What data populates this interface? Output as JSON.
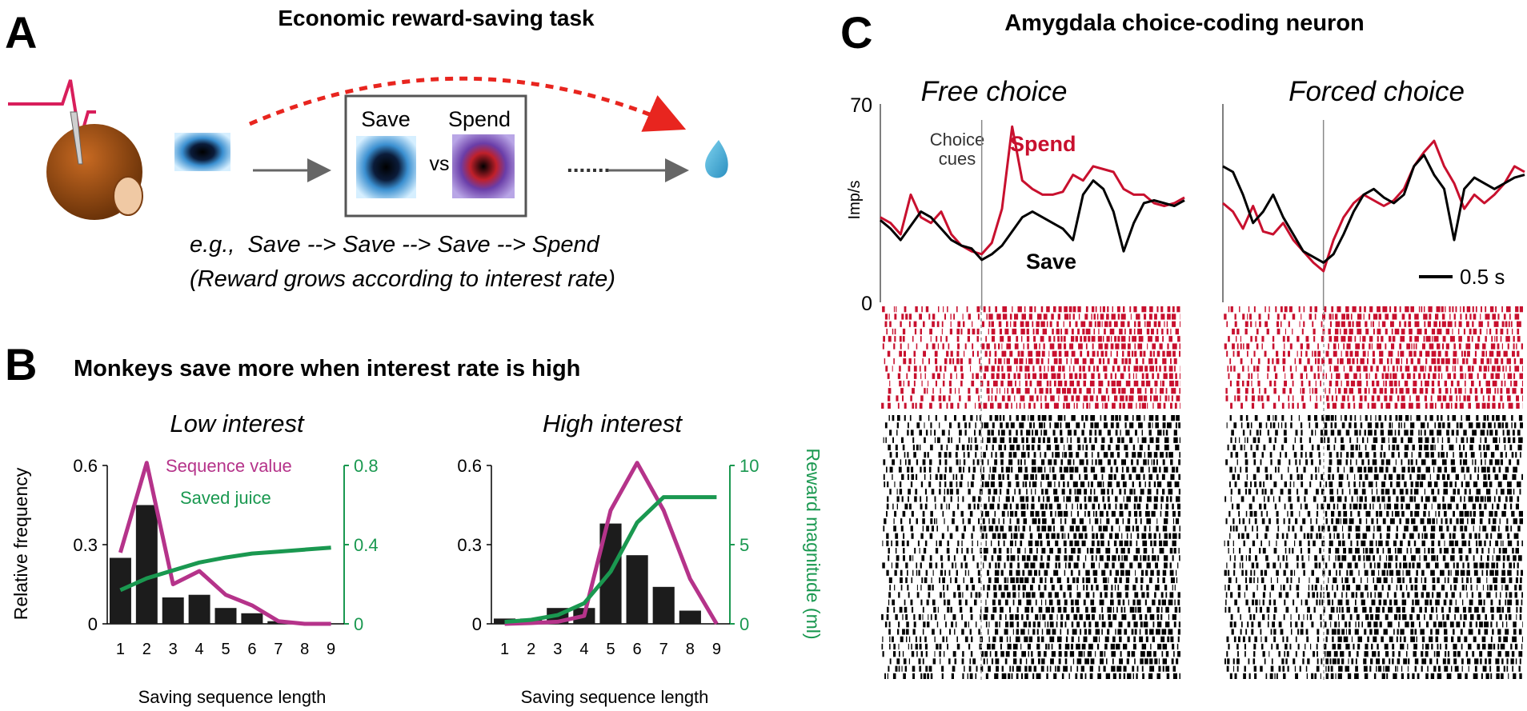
{
  "panel_a": {
    "letter": "A",
    "title": "Economic reward-saving task",
    "save_label": "Save",
    "spend_label": "Spend",
    "vs_label": "vs",
    "example": "e.g.,  Save --> Save --> Save --> Spend",
    "note": "(Reward grows according to interest rate)"
  },
  "panel_b": {
    "letter": "B",
    "title": "Monkeys save more when interest rate is high",
    "low_title": "Low interest",
    "high_title": "High interest",
    "legend_value": "Sequence value",
    "legend_juice": "Saved juice",
    "ylabel": "Relative frequency",
    "y2label": "Reward magnitude (ml)",
    "xlabel": "Saving sequence length"
  },
  "panel_c": {
    "letter": "C",
    "title": "Amygdala choice-coding neuron",
    "free_title": "Free choice",
    "forced_title": "Forced choice",
    "ylabel": "Imp/s",
    "y_top": "70",
    "y_bottom": "0",
    "choice_cues": [
      "Choice",
      "cues"
    ],
    "spend_label": "Spend",
    "save_label": "Save",
    "scale_label": "0.5 s"
  },
  "colors": {
    "magenta": "#B5338A",
    "green": "#1A9850",
    "red": "#C8102E",
    "bar": "#1c1c1c",
    "dashed": "#E8251F"
  },
  "chart_data": [
    {
      "type": "bar",
      "title": "Low interest",
      "xlabel": "Saving sequence length",
      "ylabel": "Relative frequency",
      "categories": [
        1,
        2,
        3,
        4,
        5,
        6,
        7,
        8,
        9
      ],
      "values": [
        0.25,
        0.45,
        0.1,
        0.11,
        0.06,
        0.04,
        0.01,
        0.0,
        0.0
      ],
      "ylim": [
        0,
        0.6
      ],
      "yticks": [
        0,
        0.3,
        0.6
      ],
      "y2lim": [
        0,
        0.8
      ],
      "y2ticks": [
        0,
        0.4,
        0.8
      ],
      "series": [
        {
          "name": "Sequence value",
          "axis": "left",
          "x": [
            1,
            2,
            3,
            4,
            5,
            6,
            7,
            8,
            9
          ],
          "values": [
            0.27,
            0.61,
            0.15,
            0.2,
            0.11,
            0.07,
            0.01,
            0.0,
            0.0
          ]
        },
        {
          "name": "Saved juice",
          "axis": "right",
          "x": [
            1,
            2,
            3,
            4,
            5,
            6,
            7,
            8,
            9
          ],
          "values": [
            0.17,
            0.23,
            0.27,
            0.31,
            0.335,
            0.355,
            0.365,
            0.375,
            0.385
          ]
        }
      ]
    },
    {
      "type": "bar",
      "title": "High interest",
      "xlabel": "Saving sequence length",
      "ylabel": "Relative frequency",
      "y2label": "Reward magnitude (ml)",
      "categories": [
        1,
        2,
        3,
        4,
        5,
        6,
        7,
        8,
        9
      ],
      "values": [
        0.02,
        0.02,
        0.06,
        0.06,
        0.38,
        0.26,
        0.14,
        0.05,
        0.0
      ],
      "ylim": [
        0,
        0.6
      ],
      "yticks": [
        0,
        0.3,
        0.6
      ],
      "y2lim": [
        0,
        10
      ],
      "y2ticks": [
        0,
        5,
        10
      ],
      "series": [
        {
          "name": "Sequence value",
          "axis": "left",
          "x": [
            1,
            2,
            3,
            4,
            5,
            6,
            7,
            8,
            9
          ],
          "values": [
            0.0,
            0.003,
            0.008,
            0.03,
            0.43,
            0.61,
            0.43,
            0.17,
            0.0
          ]
        },
        {
          "name": "Saved juice",
          "axis": "right",
          "x": [
            1,
            2,
            3,
            4,
            5,
            6,
            7,
            8,
            9
          ],
          "values": [
            0.12,
            0.25,
            0.55,
            1.3,
            3.3,
            6.4,
            8.0,
            8.0,
            8.0
          ]
        }
      ]
    },
    {
      "type": "line",
      "title": "Free choice",
      "ylabel": "Imp/s",
      "ylim": [
        0,
        70
      ],
      "yticks": [
        0,
        70
      ],
      "xlim": [
        -1.0,
        2.0
      ],
      "event_marker": 0,
      "series": [
        {
          "name": "Spend",
          "x": [
            -1.0,
            -0.9,
            -0.8,
            -0.7,
            -0.6,
            -0.5,
            -0.4,
            -0.3,
            -0.2,
            -0.1,
            0.0,
            0.1,
            0.2,
            0.3,
            0.4,
            0.5,
            0.6,
            0.7,
            0.8,
            0.9,
            1.0,
            1.1,
            1.2,
            1.3,
            1.4,
            1.5,
            1.6,
            1.7,
            1.8,
            1.9,
            2.0
          ],
          "values": [
            30,
            28,
            24,
            38,
            30,
            28,
            32,
            24,
            20,
            18,
            17,
            21,
            33,
            62,
            43,
            40,
            38,
            38,
            39,
            45,
            43,
            48,
            47,
            46,
            40,
            38,
            38,
            35,
            34,
            35,
            37
          ]
        },
        {
          "name": "Save",
          "x": [
            -1.0,
            -0.9,
            -0.8,
            -0.7,
            -0.6,
            -0.5,
            -0.4,
            -0.3,
            -0.2,
            -0.1,
            0.0,
            0.1,
            0.2,
            0.3,
            0.4,
            0.5,
            0.6,
            0.7,
            0.8,
            0.9,
            1.0,
            1.1,
            1.2,
            1.3,
            1.4,
            1.5,
            1.6,
            1.7,
            1.8,
            1.9,
            2.0
          ],
          "values": [
            29,
            26,
            22,
            27,
            32,
            30,
            26,
            22,
            20,
            19,
            15,
            17,
            20,
            25,
            30,
            32,
            30,
            28,
            26,
            22,
            38,
            43,
            40,
            32,
            18,
            28,
            35,
            36,
            35,
            34,
            36
          ]
        }
      ]
    },
    {
      "type": "line",
      "title": "Forced choice",
      "ylabel": "Imp/s",
      "ylim": [
        0,
        70
      ],
      "xlim": [
        -1.0,
        2.0
      ],
      "event_marker": 0,
      "series": [
        {
          "name": "Spend",
          "x": [
            -1.0,
            -0.9,
            -0.8,
            -0.7,
            -0.6,
            -0.5,
            -0.4,
            -0.3,
            -0.2,
            -0.1,
            0.0,
            0.1,
            0.2,
            0.3,
            0.4,
            0.5,
            0.6,
            0.7,
            0.8,
            0.9,
            1.0,
            1.1,
            1.2,
            1.3,
            1.4,
            1.5,
            1.6,
            1.7,
            1.8,
            1.9,
            2.0
          ],
          "values": [
            35,
            32,
            26,
            34,
            25,
            24,
            28,
            22,
            18,
            14,
            11,
            22,
            30,
            35,
            38,
            36,
            34,
            36,
            40,
            48,
            53,
            57,
            48,
            42,
            33,
            38,
            35,
            38,
            42,
            48,
            46
          ]
        },
        {
          "name": "Save",
          "x": [
            -1.0,
            -0.9,
            -0.8,
            -0.7,
            -0.6,
            -0.5,
            -0.4,
            -0.3,
            -0.2,
            -0.1,
            0.0,
            0.1,
            0.2,
            0.3,
            0.4,
            0.5,
            0.6,
            0.7,
            0.8,
            0.9,
            1.0,
            1.1,
            1.2,
            1.3,
            1.4,
            1.5,
            1.6,
            1.7,
            1.8,
            1.9,
            2.0
          ],
          "values": [
            48,
            46,
            38,
            28,
            32,
            38,
            30,
            24,
            18,
            16,
            14,
            17,
            24,
            32,
            38,
            40,
            37,
            35,
            38,
            48,
            52,
            45,
            40,
            22,
            40,
            44,
            42,
            40,
            42,
            44,
            45
          ]
        }
      ]
    }
  ]
}
